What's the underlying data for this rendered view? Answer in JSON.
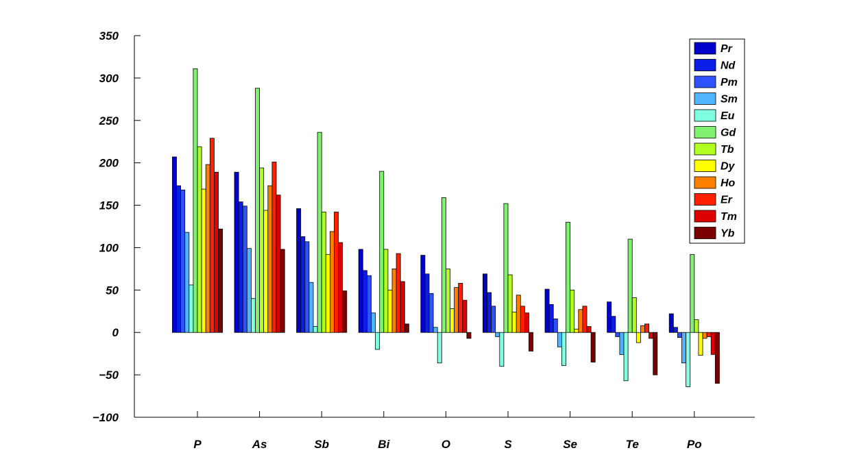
{
  "chart_data": {
    "type": "bar",
    "title": "",
    "xlabel": "",
    "ylabel": "",
    "ylim": [
      -100,
      350
    ],
    "yticks": [
      -100,
      -50,
      0,
      50,
      100,
      150,
      200,
      250,
      300,
      350
    ],
    "ytick_labels": [
      "−100",
      "−50",
      "0",
      "50",
      "100",
      "150",
      "200",
      "250",
      "300",
      "350"
    ],
    "categories": [
      "P",
      "As",
      "Sb",
      "Bi",
      "O",
      "S",
      "Se",
      "Te",
      "Po"
    ],
    "grid": false,
    "legend_position": "top-right",
    "series": [
      {
        "name": "Pr",
        "color": "#0000cd",
        "values": [
          207,
          189,
          146,
          98,
          91,
          69,
          51,
          36,
          22
        ]
      },
      {
        "name": "Nd",
        "color": "#0a1ee6",
        "values": [
          173,
          154,
          113,
          73,
          69,
          47,
          33,
          19,
          6
        ]
      },
      {
        "name": "Pm",
        "color": "#2e52ff",
        "values": [
          168,
          149,
          107,
          67,
          46,
          31,
          16,
          -5,
          -6
        ]
      },
      {
        "name": "Sm",
        "color": "#50b4ff",
        "values": [
          118,
          99,
          59,
          23,
          6,
          -5,
          -17,
          -26,
          -36
        ]
      },
      {
        "name": "Eu",
        "color": "#80ffe0",
        "values": [
          56,
          40,
          7,
          -20,
          -36,
          -40,
          -39,
          -57,
          -64
        ]
      },
      {
        "name": "Gd",
        "color": "#80f070",
        "values": [
          311,
          288,
          236,
          190,
          159,
          152,
          130,
          110,
          92
        ]
      },
      {
        "name": "Tb",
        "color": "#b0ff20",
        "values": [
          219,
          194,
          142,
          98,
          75,
          68,
          50,
          41,
          15
        ]
      },
      {
        "name": "Dy",
        "color": "#ffff00",
        "values": [
          169,
          144,
          92,
          50,
          28,
          24,
          4,
          -12,
          -27
        ]
      },
      {
        "name": "Ho",
        "color": "#ff8000",
        "values": [
          198,
          173,
          119,
          75,
          53,
          44,
          27,
          8,
          -7
        ]
      },
      {
        "name": "Er",
        "color": "#ff2000",
        "values": [
          229,
          201,
          142,
          93,
          58,
          31,
          31,
          10,
          -5
        ]
      },
      {
        "name": "Tm",
        "color": "#dc0000",
        "values": [
          189,
          162,
          106,
          60,
          38,
          23,
          7,
          -7,
          -26
        ]
      },
      {
        "name": "Yb",
        "color": "#7a0000",
        "values": [
          122,
          98,
          49,
          10,
          -7,
          -22,
          -35,
          -50,
          -60
        ]
      }
    ]
  }
}
